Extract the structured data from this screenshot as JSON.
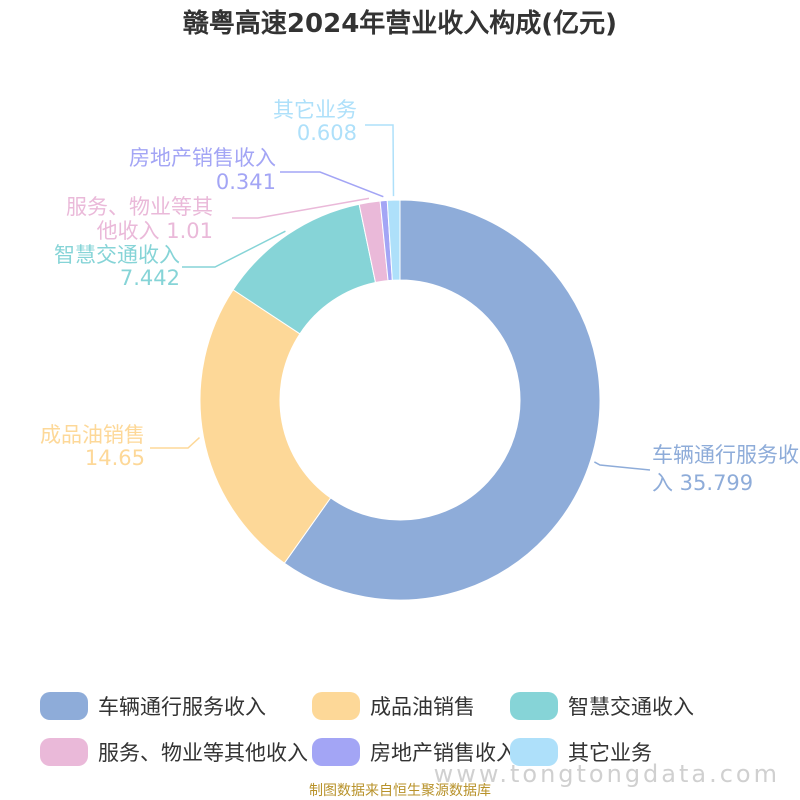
{
  "chart_data": {
    "type": "pie",
    "variant": "donut",
    "title": "赣粤高速2024年营业收入构成(亿元)",
    "slices": [
      {
        "name": "车辆通行服务收入",
        "value": 35.799,
        "value_text": "35.799",
        "color": "#8eacd9"
      },
      {
        "name": "成品油销售",
        "value": 14.65,
        "value_text": "14.65",
        "color": "#fdd898"
      },
      {
        "name": "智慧交通收入",
        "value": 7.442,
        "value_text": "7.442",
        "color": "#86d4d7"
      },
      {
        "name": "服务、物业等其他收入",
        "value": 1.01,
        "value_text": "1.01",
        "color": "#eab9d9"
      },
      {
        "name": "房地产销售收入",
        "value": 0.341,
        "value_text": "0.341",
        "color": "#a3a5f5"
      },
      {
        "name": "其它业务",
        "value": 0.608,
        "value_text": "0.608",
        "color": "#aee0fa"
      }
    ],
    "legend": "bottom"
  },
  "footer": {
    "source": "制图数据来自恒生聚源数据库",
    "watermark": "www.tongtongdata.com"
  }
}
